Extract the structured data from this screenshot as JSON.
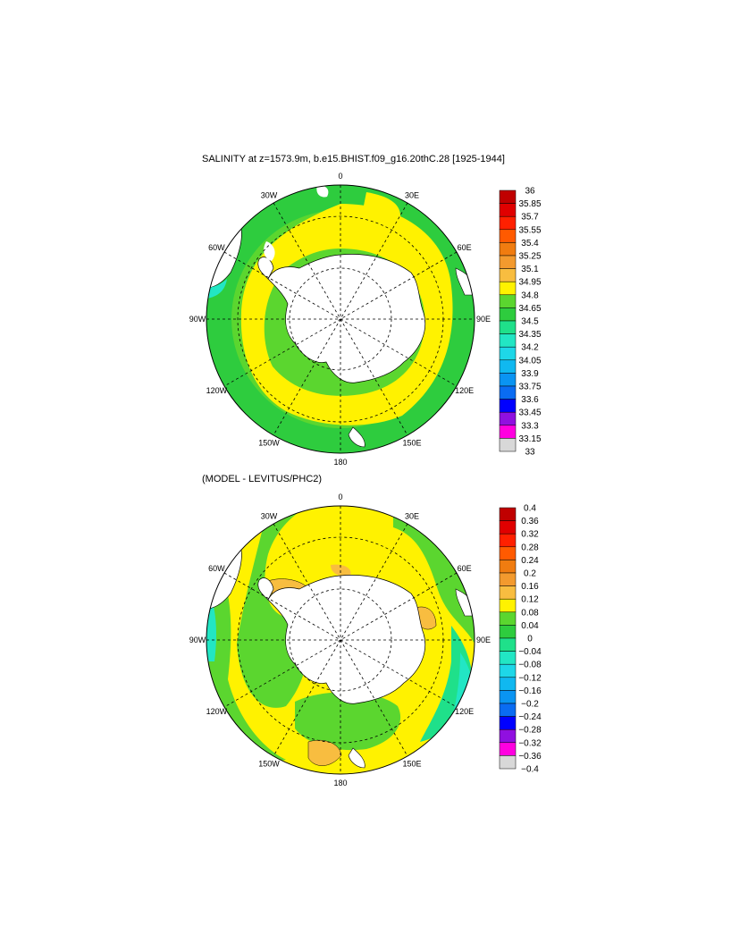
{
  "chart_data": [
    {
      "type": "heatmap",
      "projection": "south-polar-stereographic",
      "title": "SALINITY at z=1573.9m, b.e15.BHIST.f09_g16.20thC.28 [1925-1944]",
      "lon_labels": [
        "0",
        "30E",
        "60E",
        "90E",
        "120E",
        "150E",
        "180",
        "150W",
        "120W",
        "90W",
        "60W",
        "30W"
      ],
      "colorbar": {
        "levels": [
          "36",
          "35.85",
          "35.7",
          "35.55",
          "35.4",
          "35.25",
          "35.1",
          "34.95",
          "34.8",
          "34.65",
          "34.5",
          "34.35",
          "34.2",
          "34.05",
          "33.9",
          "33.75",
          "33.6",
          "33.45",
          "33.3",
          "33.15",
          "33"
        ],
        "colors": [
          "#c00000",
          "#e00000",
          "#ff2000",
          "#ff5a00",
          "#f07c10",
          "#f39a2e",
          "#f8bd40",
          "#fff200",
          "#5bd62f",
          "#2ecc3e",
          "#1fe08a",
          "#22e6c4",
          "#1ed7e8",
          "#10b8f0",
          "#0a94f2",
          "#0a6cf2",
          "#0000ff",
          "#9010e0",
          "#ff00e0",
          "#d8d8d8"
        ]
      }
    },
    {
      "type": "heatmap",
      "projection": "south-polar-stereographic",
      "title": "(MODEL - LEVITUS/PHC2)",
      "lon_labels": [
        "0",
        "30E",
        "60E",
        "90E",
        "120E",
        "150E",
        "180",
        "150W",
        "120W",
        "90W",
        "60W",
        "30W"
      ],
      "colorbar": {
        "levels": [
          "0.4",
          "0.36",
          "0.32",
          "0.28",
          "0.24",
          "0.2",
          "0.16",
          "0.12",
          "0.08",
          "0.04",
          "0",
          "−0.04",
          "−0.08",
          "−0.12",
          "−0.16",
          "−0.2",
          "−0.24",
          "−0.28",
          "−0.32",
          "−0.36",
          "−0.4"
        ],
        "colors": [
          "#c00000",
          "#e00000",
          "#ff2000",
          "#ff5a00",
          "#f07c10",
          "#f39a2e",
          "#f8bd40",
          "#fff200",
          "#5bd62f",
          "#2ecc3e",
          "#1fe08a",
          "#22e6c4",
          "#1ed7e8",
          "#10b8f0",
          "#0a94f2",
          "#0a6cf2",
          "#0000ff",
          "#9010e0",
          "#ff00e0",
          "#d8d8d8"
        ]
      }
    }
  ]
}
